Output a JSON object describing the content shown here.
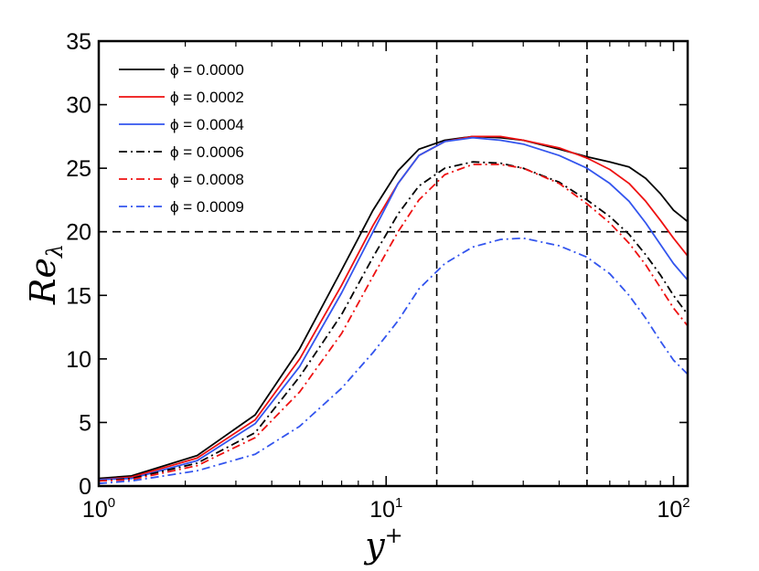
{
  "chart_data": {
    "type": "line",
    "xscale": "log",
    "xlim": [
      1,
      112
    ],
    "ylim": [
      0,
      35
    ],
    "xlabel": {
      "base": "y",
      "sup": "+"
    },
    "ylabel": {
      "base": "Re",
      "sub": "λ"
    },
    "xticks": [
      {
        "value": 1,
        "base": "10",
        "exp": "0"
      },
      {
        "value": 10,
        "base": "10",
        "exp": "1"
      },
      {
        "value": 100,
        "base": "10",
        "exp": "2"
      }
    ],
    "yticks": [
      0,
      5,
      10,
      15,
      20,
      25,
      30,
      35
    ],
    "reference_lines": [
      {
        "axis": "y",
        "value": 20
      },
      {
        "axis": "x",
        "value": 15
      },
      {
        "axis": "x",
        "value": 50
      }
    ],
    "legend_position": "top-left",
    "series": [
      {
        "name": "ϕ = 0.0000",
        "color": "#000000",
        "dash": "solid",
        "x": [
          1,
          1.3,
          2.2,
          3.5,
          5,
          7,
          9,
          11,
          13,
          16,
          20,
          25,
          30,
          40,
          50,
          60,
          70,
          80,
          90,
          100,
          112
        ],
        "y": [
          0.6,
          0.8,
          2.4,
          5.6,
          10.8,
          17.0,
          21.7,
          24.8,
          26.5,
          27.2,
          27.5,
          27.4,
          27.2,
          26.5,
          25.9,
          25.5,
          25.1,
          24.2,
          23.0,
          21.7,
          20.8
        ]
      },
      {
        "name": "ϕ = 0.0002",
        "color": "#ee1111",
        "dash": "solid",
        "x": [
          1,
          1.3,
          2.2,
          3.5,
          5,
          7,
          9,
          11,
          13,
          16,
          20,
          25,
          30,
          40,
          50,
          60,
          70,
          80,
          90,
          100,
          112
        ],
        "y": [
          0.5,
          0.7,
          2.2,
          5.2,
          10.0,
          15.8,
          20.5,
          23.8,
          26.0,
          27.1,
          27.5,
          27.5,
          27.2,
          26.6,
          25.8,
          24.9,
          23.8,
          22.4,
          20.9,
          19.5,
          18.1
        ]
      },
      {
        "name": "ϕ = 0.0004",
        "color": "#3355ee",
        "dash": "solid",
        "x": [
          1,
          1.3,
          2.2,
          3.5,
          5,
          7,
          9,
          11,
          13,
          16,
          20,
          25,
          30,
          40,
          50,
          60,
          70,
          80,
          90,
          100,
          112
        ],
        "y": [
          0.5,
          0.6,
          2.0,
          4.9,
          9.4,
          15.2,
          20.0,
          23.8,
          26.0,
          27.1,
          27.4,
          27.2,
          26.9,
          26.0,
          25.0,
          23.8,
          22.4,
          20.7,
          19.0,
          17.5,
          16.2
        ]
      },
      {
        "name": "ϕ = 0.0006",
        "color": "#000000",
        "dash": "dashdot",
        "x": [
          1,
          1.3,
          2.2,
          3.5,
          5,
          7,
          9,
          11,
          13,
          16,
          20,
          25,
          30,
          40,
          50,
          60,
          70,
          80,
          90,
          100,
          112
        ],
        "y": [
          0.4,
          0.6,
          1.8,
          4.2,
          8.6,
          13.5,
          18.0,
          21.4,
          23.6,
          25.0,
          25.5,
          25.4,
          25.0,
          23.9,
          22.5,
          21.2,
          19.8,
          18.2,
          16.6,
          15.0,
          13.5
        ]
      },
      {
        "name": "ϕ = 0.0008",
        "color": "#ee1111",
        "dash": "dashdot",
        "x": [
          1,
          1.3,
          2.2,
          3.5,
          5,
          7,
          9,
          11,
          13,
          16,
          20,
          25,
          30,
          40,
          50,
          60,
          70,
          80,
          90,
          100,
          112
        ],
        "y": [
          0.4,
          0.5,
          1.6,
          3.8,
          7.4,
          12.0,
          16.5,
          20.0,
          22.5,
          24.5,
          25.3,
          25.3,
          25.0,
          23.8,
          22.2,
          20.7,
          19.1,
          17.4,
          15.6,
          14.0,
          12.6
        ]
      },
      {
        "name": "ϕ = 0.0009",
        "color": "#3355ee",
        "dash": "dashdot",
        "x": [
          1,
          1.3,
          2.2,
          3.5,
          5,
          7,
          9,
          11,
          13,
          16,
          20,
          25,
          30,
          40,
          50,
          60,
          70,
          80,
          90,
          100,
          112
        ],
        "y": [
          0.2,
          0.4,
          1.2,
          2.5,
          4.7,
          7.7,
          10.5,
          13.0,
          15.5,
          17.5,
          18.8,
          19.4,
          19.5,
          18.9,
          18.0,
          16.7,
          15.0,
          13.2,
          11.4,
          9.9,
          8.8
        ]
      }
    ]
  }
}
